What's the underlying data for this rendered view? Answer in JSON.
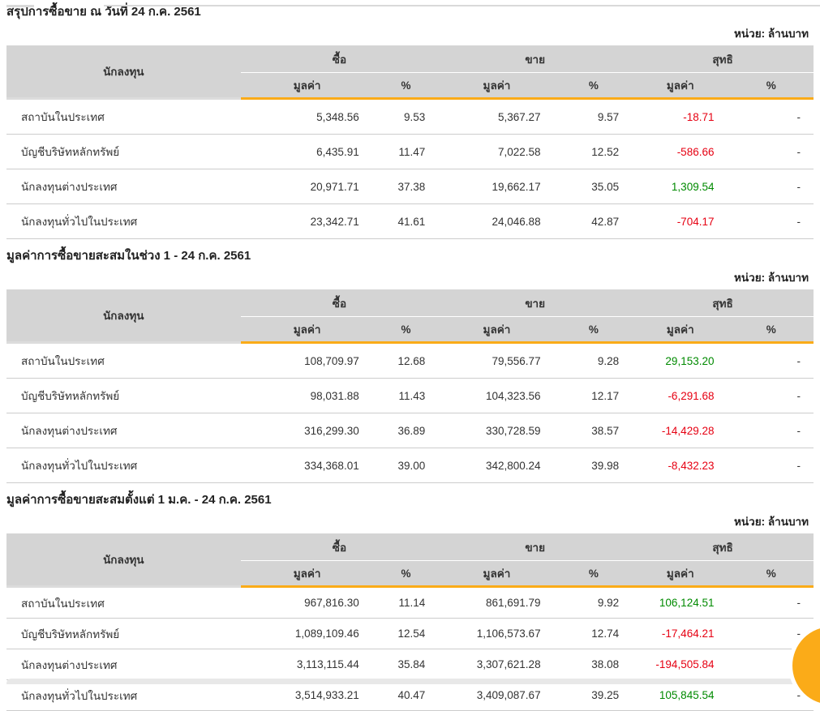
{
  "unit_label": "หน่วย: ล้านบาท",
  "columns": {
    "investor": "นักลงทุน",
    "buy": "ซื้อ",
    "sell": "ขาย",
    "net": "สุทธิ",
    "value": "มูลค่า",
    "percent": "%"
  },
  "colors": {
    "accent_amber": "#faab18",
    "header_grey": "#d4d4d4",
    "negative_red": "#e60012",
    "positive_green": "#008a00"
  },
  "sections": [
    {
      "title": "สรุปการซื้อขาย ณ วันที่ 24 ก.ค. 2561",
      "rows": [
        {
          "investor": "สถาบันในประเทศ",
          "buy_value": "5,348.56",
          "buy_pct": "9.53",
          "sell_value": "5,367.27",
          "sell_pct": "9.57",
          "net_value": "-18.71",
          "net_trend": "neg",
          "net_pct": "-"
        },
        {
          "investor": "บัญชีบริษัทหลักทรัพย์",
          "buy_value": "6,435.91",
          "buy_pct": "11.47",
          "sell_value": "7,022.58",
          "sell_pct": "12.52",
          "net_value": "-586.66",
          "net_trend": "neg",
          "net_pct": "-"
        },
        {
          "investor": "นักลงทุนต่างประเทศ",
          "buy_value": "20,971.71",
          "buy_pct": "37.38",
          "sell_value": "19,662.17",
          "sell_pct": "35.05",
          "net_value": "1,309.54",
          "net_trend": "pos",
          "net_pct": "-"
        },
        {
          "investor": "นักลงทุนทั่วไปในประเทศ",
          "buy_value": "23,342.71",
          "buy_pct": "41.61",
          "sell_value": "24,046.88",
          "sell_pct": "42.87",
          "net_value": "-704.17",
          "net_trend": "neg",
          "net_pct": "-"
        }
      ]
    },
    {
      "title": "มูลค่าการซื้อขายสะสมในช่วง 1 - 24 ก.ค. 2561",
      "rows": [
        {
          "investor": "สถาบันในประเทศ",
          "buy_value": "108,709.97",
          "buy_pct": "12.68",
          "sell_value": "79,556.77",
          "sell_pct": "9.28",
          "net_value": "29,153.20",
          "net_trend": "pos",
          "net_pct": "-"
        },
        {
          "investor": "บัญชีบริษัทหลักทรัพย์",
          "buy_value": "98,031.88",
          "buy_pct": "11.43",
          "sell_value": "104,323.56",
          "sell_pct": "12.17",
          "net_value": "-6,291.68",
          "net_trend": "neg",
          "net_pct": "-"
        },
        {
          "investor": "นักลงทุนต่างประเทศ",
          "buy_value": "316,299.30",
          "buy_pct": "36.89",
          "sell_value": "330,728.59",
          "sell_pct": "38.57",
          "net_value": "-14,429.28",
          "net_trend": "neg",
          "net_pct": "-"
        },
        {
          "investor": "นักลงทุนทั่วไปในประเทศ",
          "buy_value": "334,368.01",
          "buy_pct": "39.00",
          "sell_value": "342,800.24",
          "sell_pct": "39.98",
          "net_value": "-8,432.23",
          "net_trend": "neg",
          "net_pct": "-"
        }
      ]
    },
    {
      "title": "มูลค่าการซื้อขายสะสมตั้งแต่ 1 ม.ค. - 24 ก.ค. 2561",
      "rows": [
        {
          "investor": "สถาบันในประเทศ",
          "buy_value": "967,816.30",
          "buy_pct": "11.14",
          "sell_value": "861,691.79",
          "sell_pct": "9.92",
          "net_value": "106,124.51",
          "net_trend": "pos",
          "net_pct": "-"
        },
        {
          "investor": "บัญชีบริษัทหลักทรัพย์",
          "buy_value": "1,089,109.46",
          "buy_pct": "12.54",
          "sell_value": "1,106,573.67",
          "sell_pct": "12.74",
          "net_value": "-17,464.21",
          "net_trend": "neg",
          "net_pct": "-"
        },
        {
          "investor": "นักลงทุนต่างประเทศ",
          "buy_value": "3,113,115.44",
          "buy_pct": "35.84",
          "sell_value": "3,307,621.28",
          "sell_pct": "38.08",
          "net_value": "-194,505.84",
          "net_trend": "neg",
          "net_pct": "-"
        },
        {
          "investor": "นักลงทุนทั่วไปในประเทศ",
          "buy_value": "3,514,933.21",
          "buy_pct": "40.47",
          "sell_value": "3,409,087.67",
          "sell_pct": "39.25",
          "net_value": "105,845.54",
          "net_trend": "pos",
          "net_pct": "-"
        }
      ]
    }
  ]
}
